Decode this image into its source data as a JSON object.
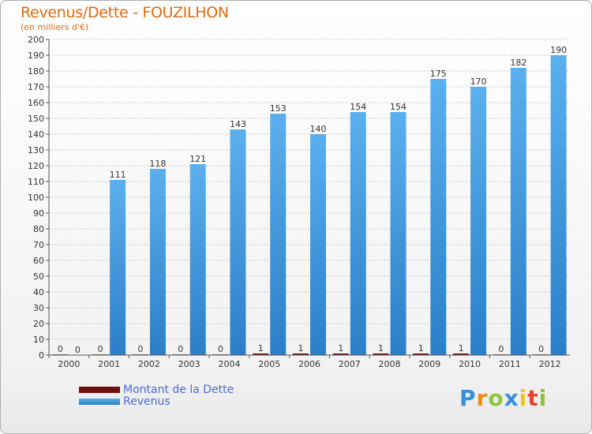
{
  "chart_data": {
    "type": "bar",
    "title": "Revenus/Dette - FOUZILHON",
    "subtitle": "(en milliers d'€)",
    "categories": [
      "2000",
      "2001",
      "2002",
      "2003",
      "2004",
      "2005",
      "2006",
      "2007",
      "2008",
      "2009",
      "2010",
      "2011",
      "2012"
    ],
    "series": [
      {
        "name": "Montant de la Dette",
        "color": "#6b0f0f",
        "values": [
          0,
          0,
          0,
          0,
          0,
          1,
          1,
          1,
          1,
          1,
          1,
          0,
          0
        ]
      },
      {
        "name": "Revenus",
        "color": "#4aa3e6",
        "values": [
          0,
          111,
          118,
          121,
          143,
          153,
          140,
          154,
          154,
          175,
          170,
          182,
          190
        ]
      }
    ],
    "ylim": [
      0,
      200
    ],
    "yticks": [
      0,
      10,
      20,
      30,
      40,
      50,
      60,
      70,
      80,
      90,
      100,
      110,
      120,
      130,
      140,
      150,
      160,
      170,
      180,
      190,
      200
    ],
    "grid": true,
    "legend": "bottom-left"
  },
  "logo": {
    "text": "Proxiti",
    "letters": [
      {
        "ch": "P",
        "color": "#3a8fd8"
      },
      {
        "ch": "r",
        "color": "#f08a1c"
      },
      {
        "ch": "o",
        "color": "#8cc43c"
      },
      {
        "ch": "x",
        "color": "#3a8fd8"
      },
      {
        "ch": "i",
        "color": "#f2c21b"
      },
      {
        "ch": "t",
        "color": "#e8402a"
      },
      {
        "ch": "i",
        "color": "#8cc43c"
      }
    ]
  }
}
